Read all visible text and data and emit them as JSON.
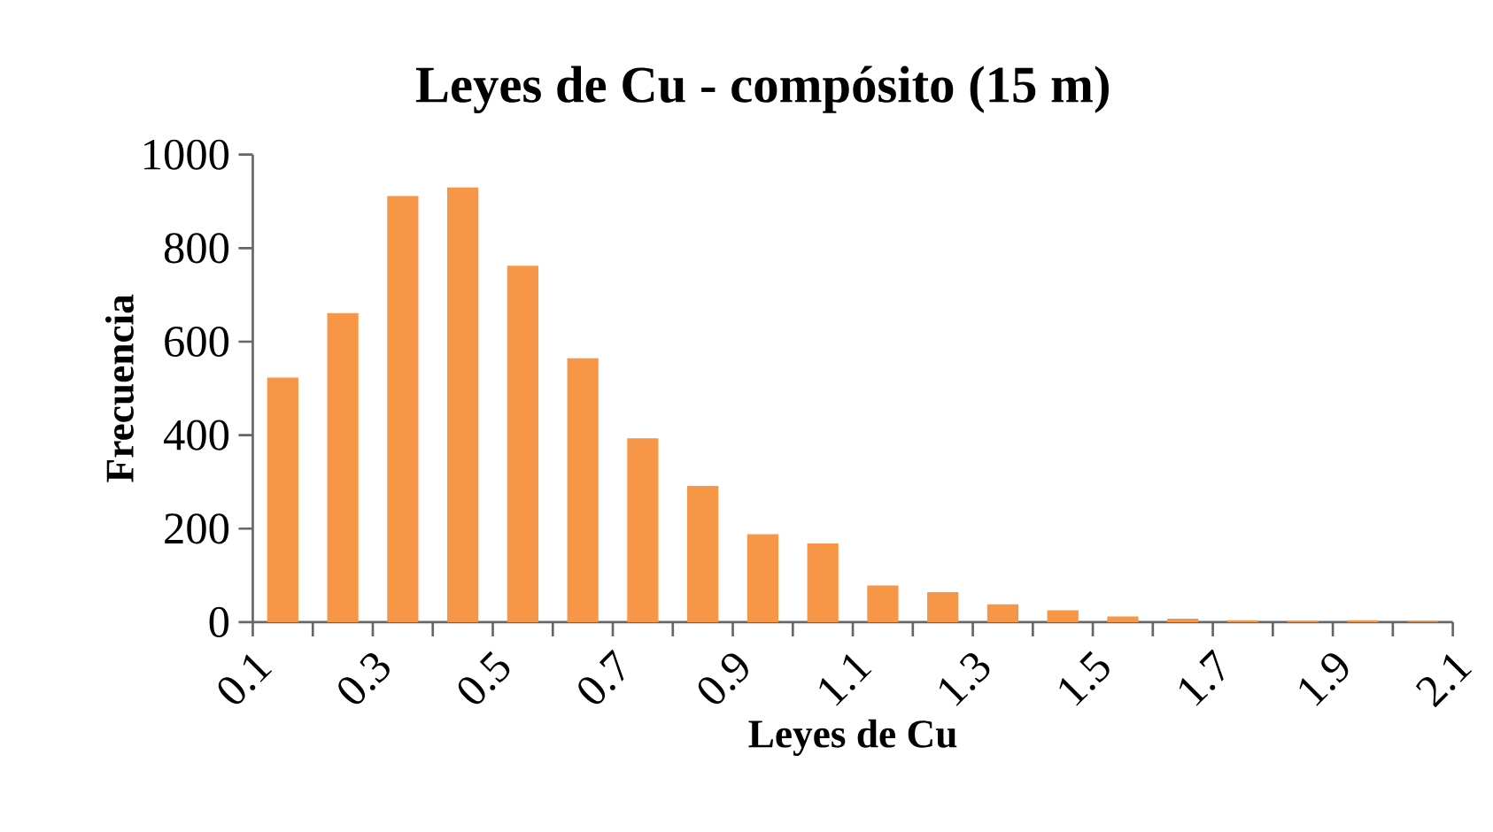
{
  "chart_data": {
    "type": "histogram",
    "title": "Leyes de Cu - compósito (15 m)",
    "xlabel": "Leyes de Cu",
    "ylabel": "Frecuencia",
    "bins": [
      0.1,
      0.2,
      0.3,
      0.4,
      0.5,
      0.6,
      0.7,
      0.8,
      0.9,
      1.0,
      1.1,
      1.2,
      1.3,
      1.4,
      1.5,
      1.6,
      1.7,
      1.8,
      1.9,
      2.0,
      2.1
    ],
    "values": [
      522,
      660,
      910,
      929,
      761,
      563,
      392,
      290,
      187,
      167,
      77,
      63,
      37,
      24,
      11,
      6,
      3,
      1,
      3,
      0
    ],
    "color": "#f79646",
    "xlim": [
      0.1,
      2.1
    ],
    "xticks": [
      0.1,
      {
        "value": 0.2,
        "label": null
      },
      0.3,
      {
        "value": 0.4,
        "label": null
      },
      0.5,
      {
        "value": 0.6,
        "label": null
      },
      0.7,
      {
        "value": 0.8,
        "label": null
      },
      0.9,
      {
        "value": 1.0,
        "label": null
      },
      1.1,
      {
        "value": 1.2,
        "label": null
      },
      1.3,
      {
        "value": 1.4,
        "label": null
      },
      1.5,
      {
        "value": 1.6,
        "label": null
      },
      1.7,
      {
        "value": 1.8,
        "label": null
      },
      1.9,
      {
        "value": 2.0,
        "label": null
      },
      2.1
    ],
    "ylim": [
      0,
      1000
    ],
    "yticks": [
      0,
      200,
      400,
      600,
      800,
      1000
    ],
    "grid": false
  }
}
